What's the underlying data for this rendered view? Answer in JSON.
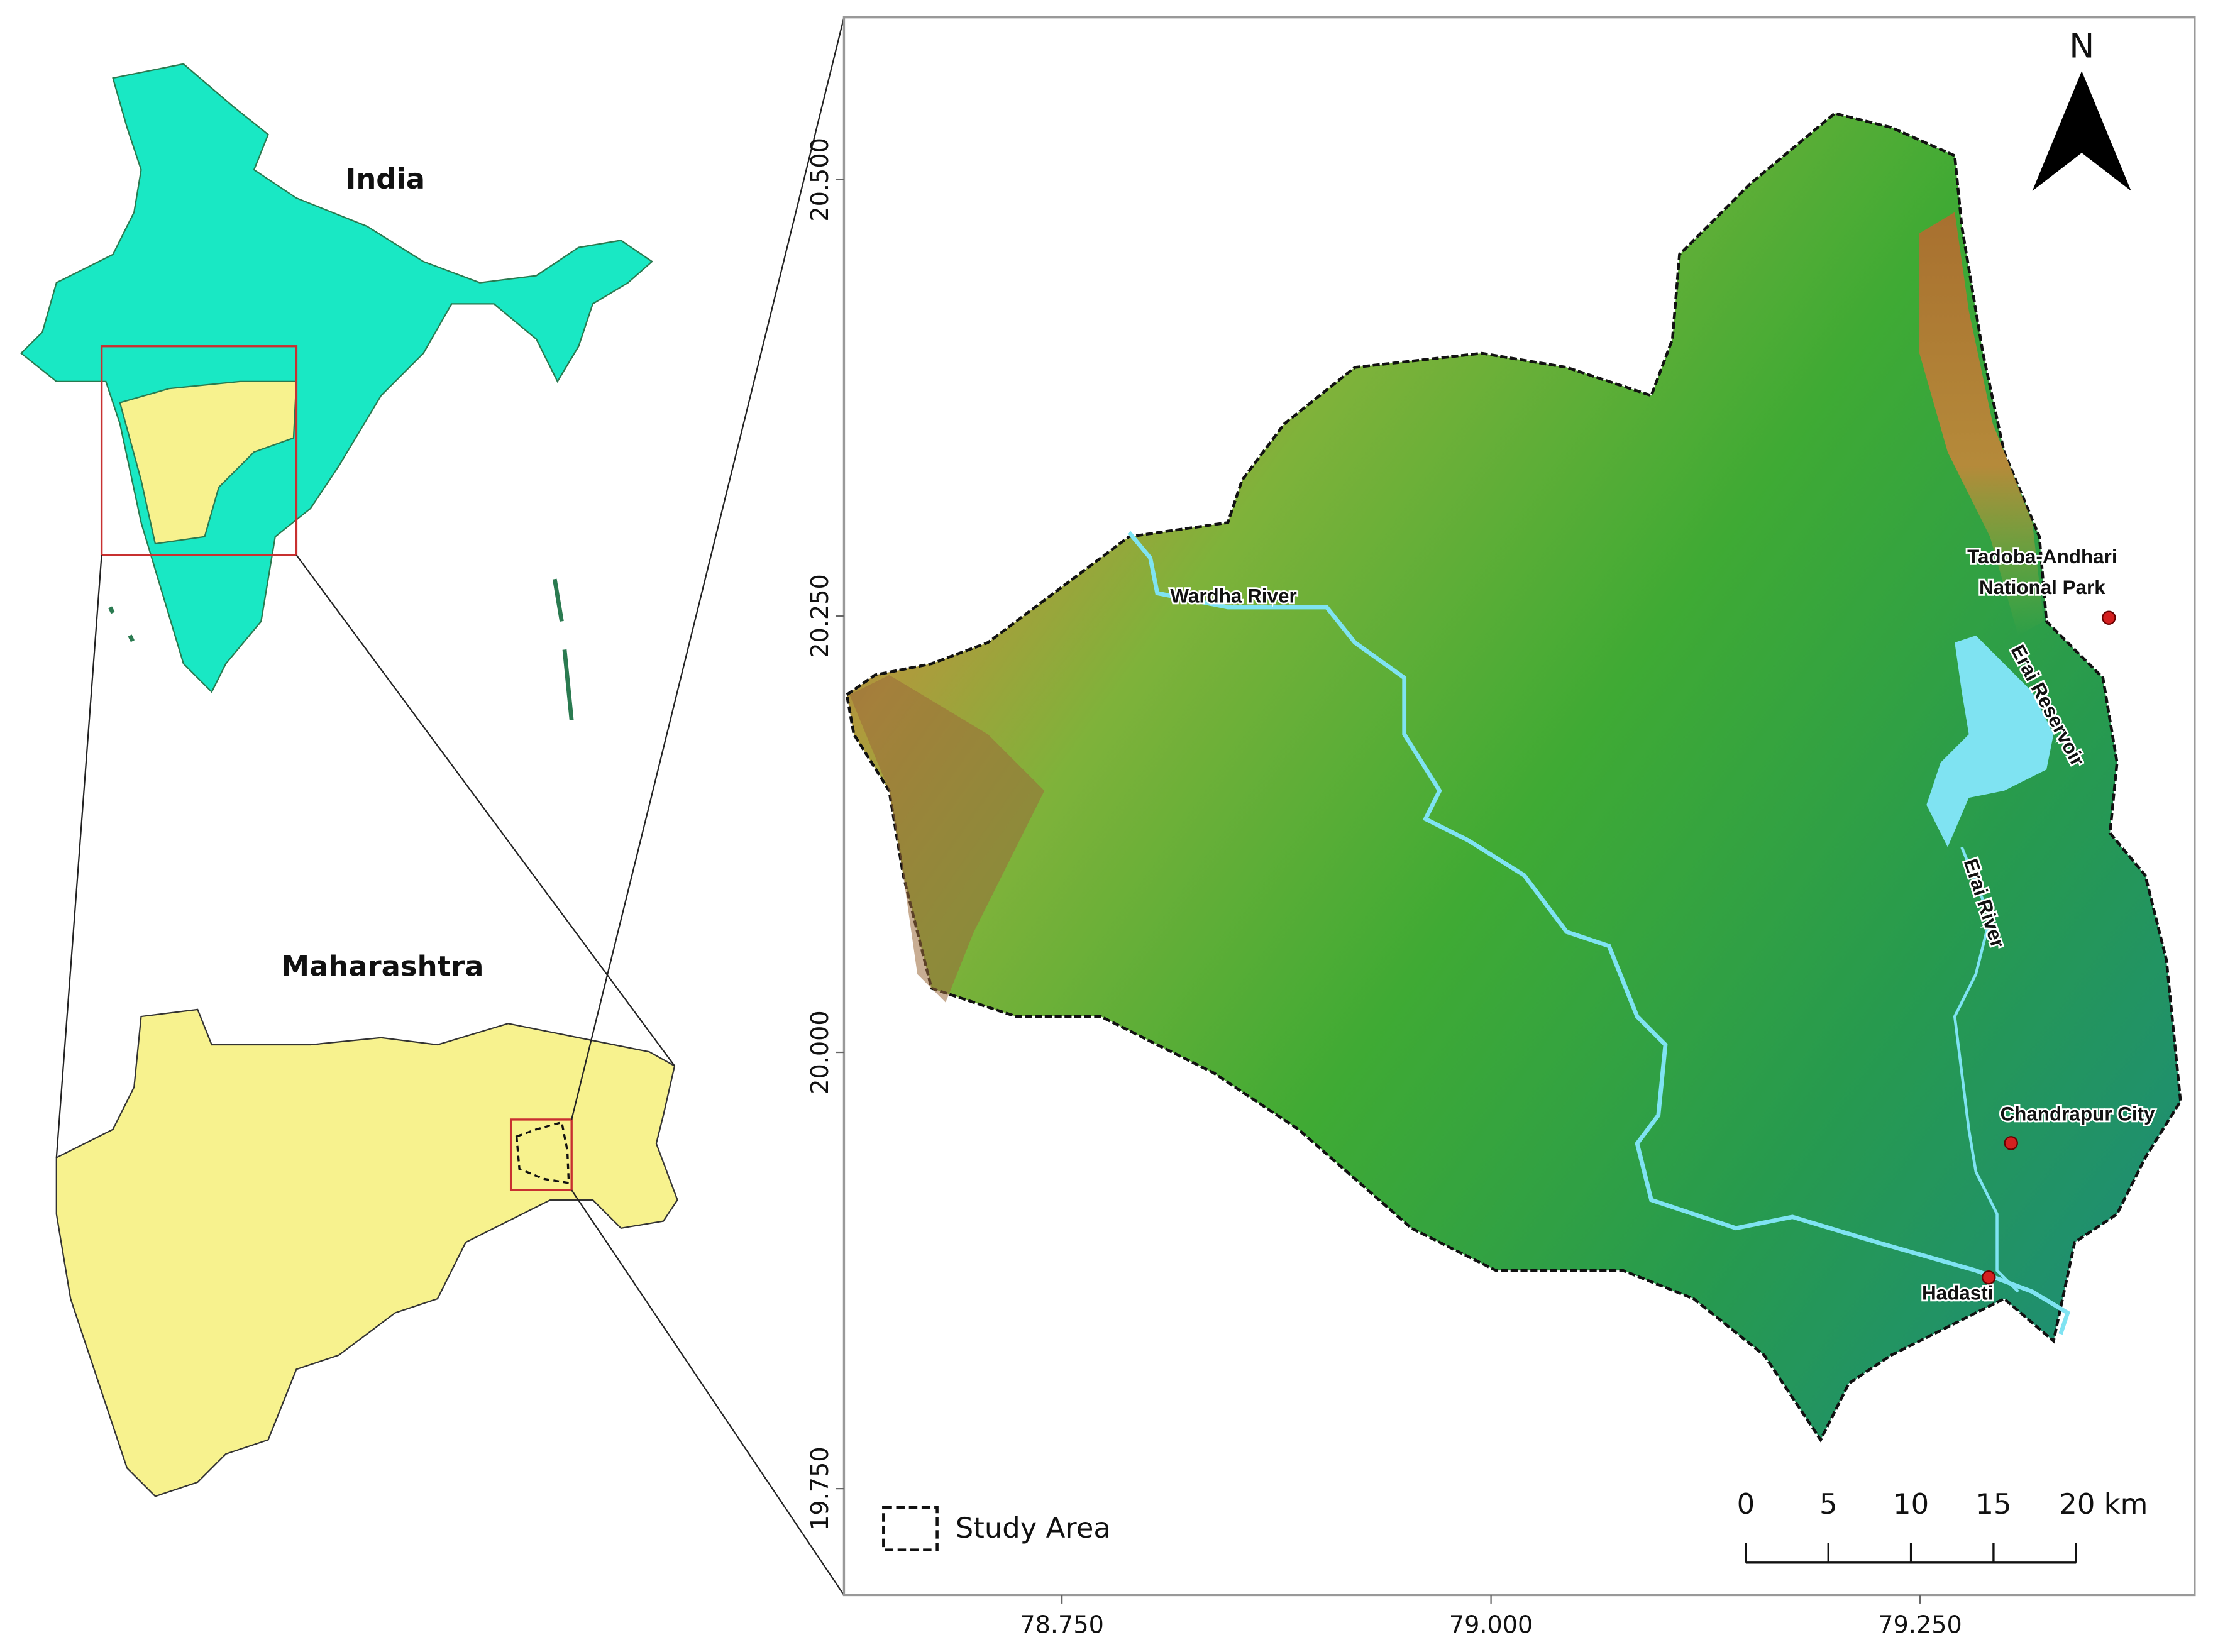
{
  "inset_india": {
    "title": "India"
  },
  "inset_state": {
    "title": "Maharashtra"
  },
  "map": {
    "north": "N",
    "xlim": [
      78.623,
      79.41
    ],
    "ylim": [
      19.689,
      20.593
    ],
    "xticks": [
      {
        "value": 78.75,
        "label": "78.750"
      },
      {
        "value": 79.0,
        "label": "79.000"
      },
      {
        "value": 79.25,
        "label": "79.250"
      }
    ],
    "yticks": [
      {
        "value": 20.5,
        "label": "20.500"
      },
      {
        "value": 20.25,
        "label": "20.250"
      },
      {
        "value": 20.0,
        "label": "20.000"
      },
      {
        "value": 19.75,
        "label": "19.750"
      }
    ],
    "features": [
      "Wardha River",
      "Erai Reservoir",
      "Erai River"
    ],
    "places": [
      {
        "label": [
          "Tadoba-Andhari",
          "National Park"
        ],
        "lon": 79.36,
        "lat": 20.249
      },
      {
        "label": [
          "Chandrapur City"
        ],
        "lon": 79.303,
        "lat": 19.948
      },
      {
        "label": [
          "Hadasti"
        ],
        "lon": 79.29,
        "lat": 19.871
      }
    ],
    "legend": "Study Area",
    "scale_bar": {
      "ticks": [
        0,
        5,
        10,
        15,
        {
          "value": 20,
          "label": "20 km"
        }
      ]
    }
  }
}
